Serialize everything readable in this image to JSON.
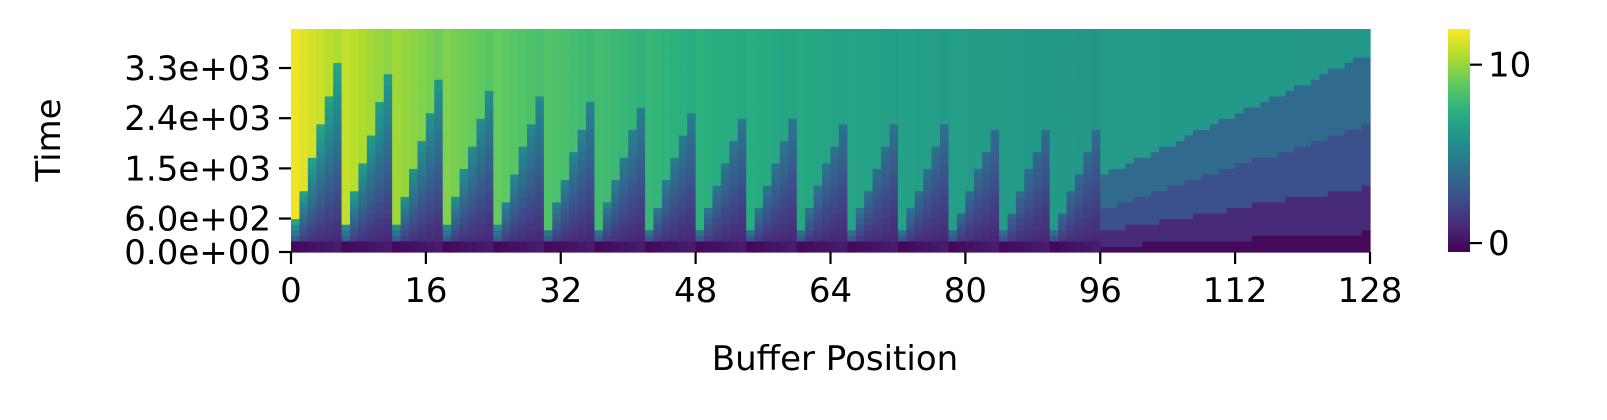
{
  "chart_data": {
    "type": "heatmap",
    "title": "",
    "xlabel": "Buffer Position",
    "ylabel": "Time",
    "x_range": [
      0,
      128
    ],
    "x_ticks": [
      0,
      16,
      32,
      48,
      64,
      80,
      96,
      112,
      128
    ],
    "x_tick_labels": [
      "0",
      "16",
      "32",
      "48",
      "64",
      "80",
      "96",
      "112",
      "128"
    ],
    "y_range": [
      0,
      4000
    ],
    "y_ticks": [
      0,
      600,
      1500,
      2400,
      3300
    ],
    "y_tick_labels": [
      "0.0e+00",
      "6.0e+02",
      "1.5e+03",
      "2.4e+03",
      "3.3e+03"
    ],
    "colormap": "viridis",
    "colorbar": {
      "min": -0.5,
      "max": 12,
      "ticks": [
        0,
        10
      ],
      "tick_labels": [
        "0",
        "10"
      ]
    },
    "description_values": {
      "periodic_columns_up_to": 96,
      "peak_value_near_position": 5,
      "right_region_max_value": 6.5
    }
  }
}
